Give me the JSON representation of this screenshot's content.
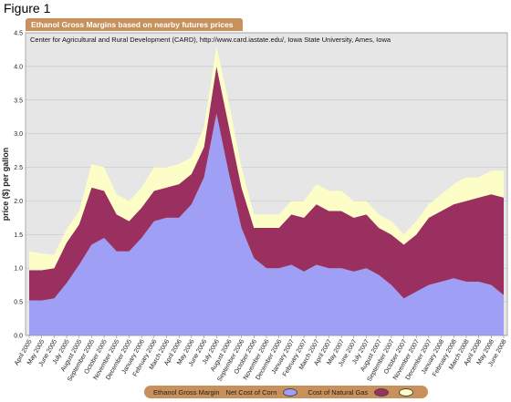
{
  "page": {
    "figure_label": "Figure 1"
  },
  "chart_data": {
    "type": "area",
    "title": "Ethanol Gross Margins based on nearby futures prices",
    "subtitle": "Center for Agricultural and Rural Development (CARD), http://www.card.iastate.edu/, Iowa State University, Ames, Iowa",
    "ylabel": "price ($) per gallon",
    "xlabel": "",
    "ylim": [
      0,
      4.5
    ],
    "yticks": [
      "0.0",
      "0.5",
      "1.0",
      "1.5",
      "2.0",
      "2.5",
      "3.0",
      "3.5",
      "4.0",
      "4.5"
    ],
    "grid": true,
    "legend_position": "bottom",
    "stacked": true,
    "colors": {
      "plot_bg": "#e6e6e6",
      "grid": "#c8c8c8",
      "corn": "#9f9ff5",
      "gas": "#9a3060",
      "margin": "#fdfdc8",
      "frame": "#c8915c"
    },
    "categories": [
      "April 2005",
      "May 2005",
      "June 2005",
      "July 2005",
      "August 2005",
      "September 2005",
      "October 2005",
      "November 2005",
      "December 2005",
      "January 2006",
      "February 2006",
      "March 2006",
      "April 2006",
      "May 2006",
      "June 2006",
      "July 2006",
      "August 2006",
      "September 2006",
      "October 2006",
      "November 2006",
      "December 2006",
      "January 2007",
      "February 2007",
      "March 2007",
      "April 2007",
      "May 2007",
      "June 2007",
      "July 2007",
      "August 2007",
      "September 2007",
      "October 2007",
      "November 2007",
      "December 2007",
      "January 2008",
      "February 2008",
      "March 2008",
      "April 2008",
      "May 2008",
      "June 2008"
    ],
    "series": [
      {
        "name": "Net Cost of Corn",
        "key": "corn",
        "values": [
          0.52,
          0.52,
          0.55,
          0.78,
          1.05,
          1.35,
          1.45,
          1.25,
          1.25,
          1.45,
          1.7,
          1.75,
          1.75,
          1.95,
          2.35,
          3.3,
          2.4,
          1.6,
          1.15,
          1.0,
          1.0,
          1.05,
          0.95,
          1.05,
          1.0,
          1.0,
          0.95,
          1.0,
          0.9,
          0.75,
          0.55,
          0.65,
          0.75,
          0.8,
          0.85,
          0.8,
          0.8,
          0.75,
          0.6
        ]
      },
      {
        "name": "Cost of Natural Gas",
        "key": "gas",
        "values": [
          0.45,
          0.45,
          0.45,
          0.6,
          0.6,
          0.85,
          0.7,
          0.55,
          0.45,
          0.45,
          0.45,
          0.45,
          0.5,
          0.45,
          0.45,
          0.7,
          0.7,
          0.6,
          0.45,
          0.6,
          0.6,
          0.75,
          0.8,
          0.9,
          0.85,
          0.85,
          0.8,
          0.8,
          0.7,
          0.75,
          0.8,
          0.85,
          1.0,
          1.05,
          1.1,
          1.2,
          1.25,
          1.35,
          1.45
        ]
      },
      {
        "name": "Ethanol Gross Margin",
        "key": "margin",
        "values": [
          0.28,
          0.25,
          0.2,
          0.2,
          0.2,
          0.35,
          0.35,
          0.3,
          0.3,
          0.3,
          0.35,
          0.3,
          0.3,
          0.25,
          0.3,
          0.3,
          0.35,
          0.3,
          0.2,
          0.2,
          0.2,
          0.2,
          0.25,
          0.3,
          0.3,
          0.3,
          0.25,
          0.2,
          0.2,
          0.2,
          0.15,
          0.2,
          0.2,
          0.25,
          0.3,
          0.35,
          0.3,
          0.35,
          0.4
        ]
      }
    ]
  }
}
